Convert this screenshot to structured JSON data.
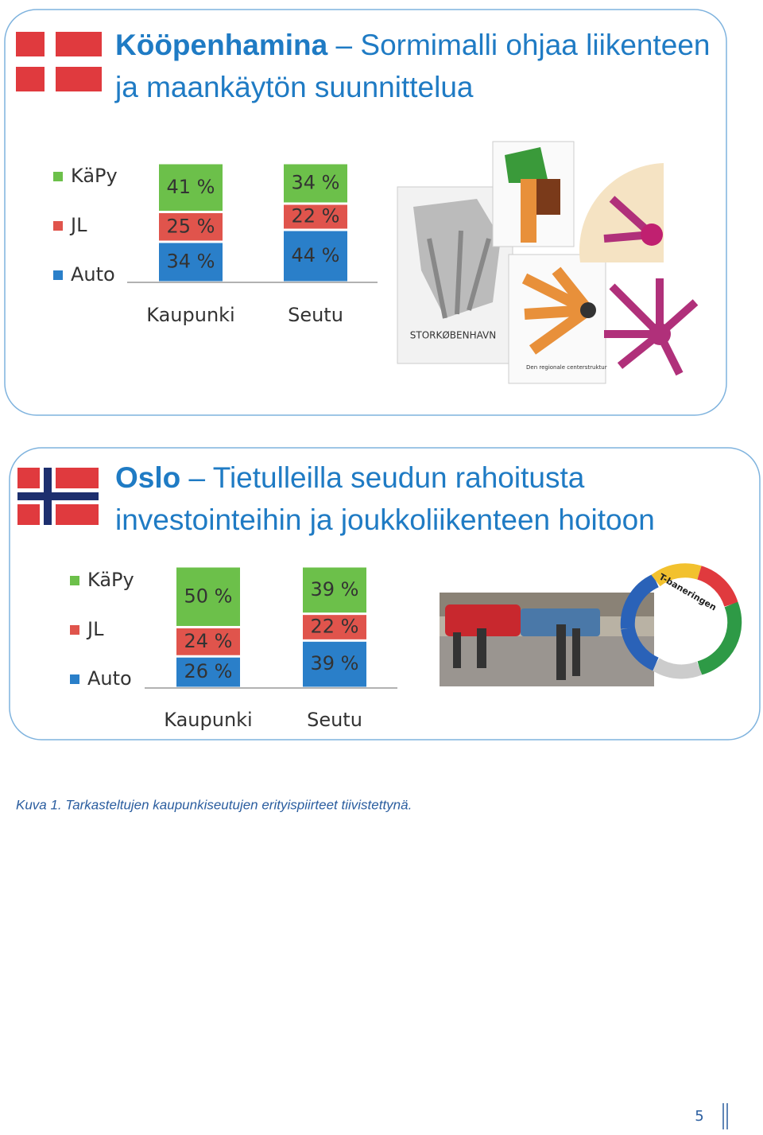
{
  "chart_data": [
    {
      "type": "bar",
      "stacked": true,
      "title": "Kööpenhamina",
      "subtitle": "– Sormimalli ohjaa liikenteen ja maankäytön suunnittelua",
      "categories": [
        "Kaupunki",
        "Seutu"
      ],
      "series": [
        {
          "name": "Auto",
          "color": "#2a7fc9",
          "values": [
            34,
            44
          ],
          "value_labels": [
            "34 %",
            "44 %"
          ]
        },
        {
          "name": "JL",
          "color": "#e0544c",
          "values": [
            25,
            22
          ],
          "value_labels": [
            "25 %",
            "22 %"
          ]
        },
        {
          "name": "KäPy",
          "color": "#6cc04a",
          "values": [
            41,
            34
          ],
          "value_labels": [
            "41 %",
            "34 %"
          ]
        }
      ],
      "image_texts": [
        "STORKØBENHAVN",
        "Den regionale centerstruktur"
      ]
    },
    {
      "type": "bar",
      "stacked": true,
      "title": "Oslo",
      "subtitle": "– Tietulleilla seudun rahoitusta investointeihin ja joukkoliikenteen hoitoon",
      "categories": [
        "Kaupunki",
        "Seutu"
      ],
      "series": [
        {
          "name": "Auto",
          "color": "#2a7fc9",
          "values": [
            26,
            39
          ],
          "value_labels": [
            "26 %",
            "39 %"
          ]
        },
        {
          "name": "JL",
          "color": "#e0544c",
          "values": [
            24,
            22
          ],
          "value_labels": [
            "24 %",
            "22 %"
          ]
        },
        {
          "name": "KäPy",
          "color": "#6cc04a",
          "values": [
            50,
            39
          ],
          "value_labels": [
            "50 %",
            "39 %"
          ]
        }
      ],
      "image_texts": [
        "T-baneringen"
      ]
    }
  ],
  "caption": "Kuva 1. Tarkasteltujen kaupunkiseutujen erityispiirteet tiivistettynä.",
  "page_number": "5"
}
